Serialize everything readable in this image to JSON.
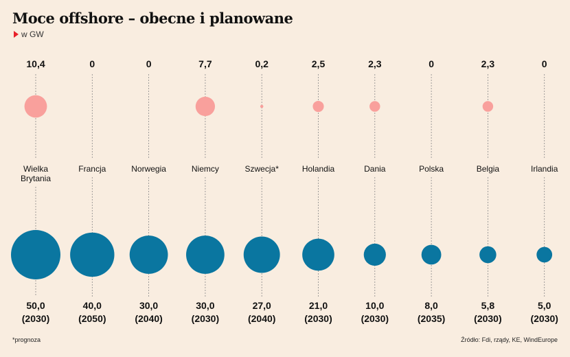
{
  "title": "Moce offshore – obecne i planowane",
  "subtitle": "w GW",
  "footnote": "*prognoza",
  "source": "Źródło: Fdi, rządy, KE, WindEurope",
  "colors": {
    "current": "#f9a09c",
    "planned": "#0a76a0",
    "guide": "#888888",
    "accent": "#e8202a",
    "background": "#f9ede0"
  },
  "chart_data": {
    "type": "bubble",
    "categories": [
      [
        "Wielka",
        "Brytania"
      ],
      [
        "Francja"
      ],
      [
        "Norwegia"
      ],
      [
        "Niemcy"
      ],
      [
        "Szwecja*"
      ],
      [
        "Holandia"
      ],
      [
        "Dania"
      ],
      [
        "Polska"
      ],
      [
        "Belgia"
      ],
      [
        "Irlandia"
      ]
    ],
    "series": [
      {
        "values": [
          10.4,
          0,
          0,
          7.7,
          0.2,
          2.5,
          2.3,
          0,
          2.3,
          0
        ],
        "labels": [
          "10,4",
          "0",
          "0",
          "7,7",
          "0,2",
          "2,5",
          "2,3",
          "0",
          "2,3",
          "0"
        ]
      },
      {
        "values": [
          50.0,
          40.0,
          30.0,
          30.0,
          27.0,
          21.0,
          10.0,
          8.0,
          5.8,
          5.0
        ],
        "labels": [
          "50,0",
          "40,0",
          "30,0",
          "30,0",
          "27,0",
          "21,0",
          "10,0",
          "8,0",
          "5,8",
          "5,0"
        ],
        "years": [
          "(2030)",
          "(2050)",
          "(2040)",
          "(2030)",
          "(2040)",
          "(2030)",
          "(2030)",
          "(2035)",
          "(2030)",
          "(2030)"
        ]
      }
    ]
  }
}
